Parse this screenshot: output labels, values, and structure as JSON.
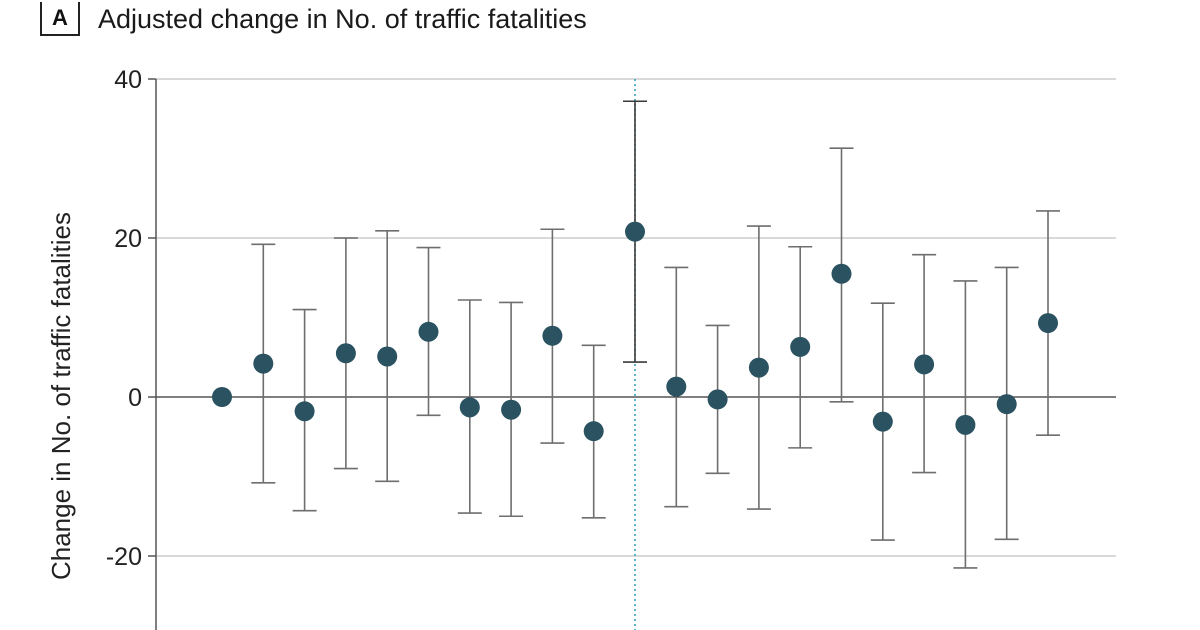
{
  "panel": {
    "letter": "A",
    "title": "Adjusted change in No. of traffic fatalities"
  },
  "chart_data": {
    "type": "scatter",
    "title": "Adjusted change in No. of traffic fatalities",
    "xlabel": "",
    "ylabel": "Change in No. of traffic fatalities",
    "ylim": [
      -29,
      40
    ],
    "y_ticks": [
      40,
      20,
      0,
      -20
    ],
    "y_tick_labels": [
      "40",
      "20",
      "0",
      "-20"
    ],
    "grid": true,
    "x_index": [
      1,
      2,
      3,
      4,
      5,
      6,
      7,
      8,
      9,
      10,
      11,
      12,
      13,
      14,
      15,
      16,
      17,
      18,
      19,
      20,
      21
    ],
    "reference_index": 11,
    "series": [
      {
        "estimate": [
          0,
          4.2,
          -1.8,
          5.5,
          5.1,
          8.2,
          -1.3,
          -1.6,
          7.7,
          -4.3,
          20.8,
          1.3,
          -0.3,
          3.7,
          6.3,
          15.5,
          -3.1,
          4.1,
          -3.5,
          -0.9,
          9.3
        ],
        "lower": [
          null,
          -10.8,
          -14.3,
          -9.0,
          -10.6,
          -2.3,
          -14.6,
          -15.0,
          -5.8,
          -15.2,
          4.4,
          -13.8,
          -9.6,
          -14.1,
          -6.4,
          -0.6,
          -18.0,
          -9.5,
          -21.5,
          -17.9,
          -4.8
        ],
        "upper": [
          null,
          19.2,
          11.0,
          20.0,
          20.9,
          18.8,
          12.2,
          11.9,
          21.1,
          6.5,
          37.2,
          16.3,
          9.0,
          21.5,
          18.9,
          31.3,
          11.8,
          17.9,
          14.6,
          16.3,
          23.4
        ]
      }
    ],
    "colors": {
      "point": "#2b5260",
      "errorbar": "#6e6e6e",
      "ci_highlight": "#3a3a3a",
      "grid": "#d9d9d9",
      "zero_line": "#333333",
      "reference_line": "#3aa0bf"
    }
  }
}
